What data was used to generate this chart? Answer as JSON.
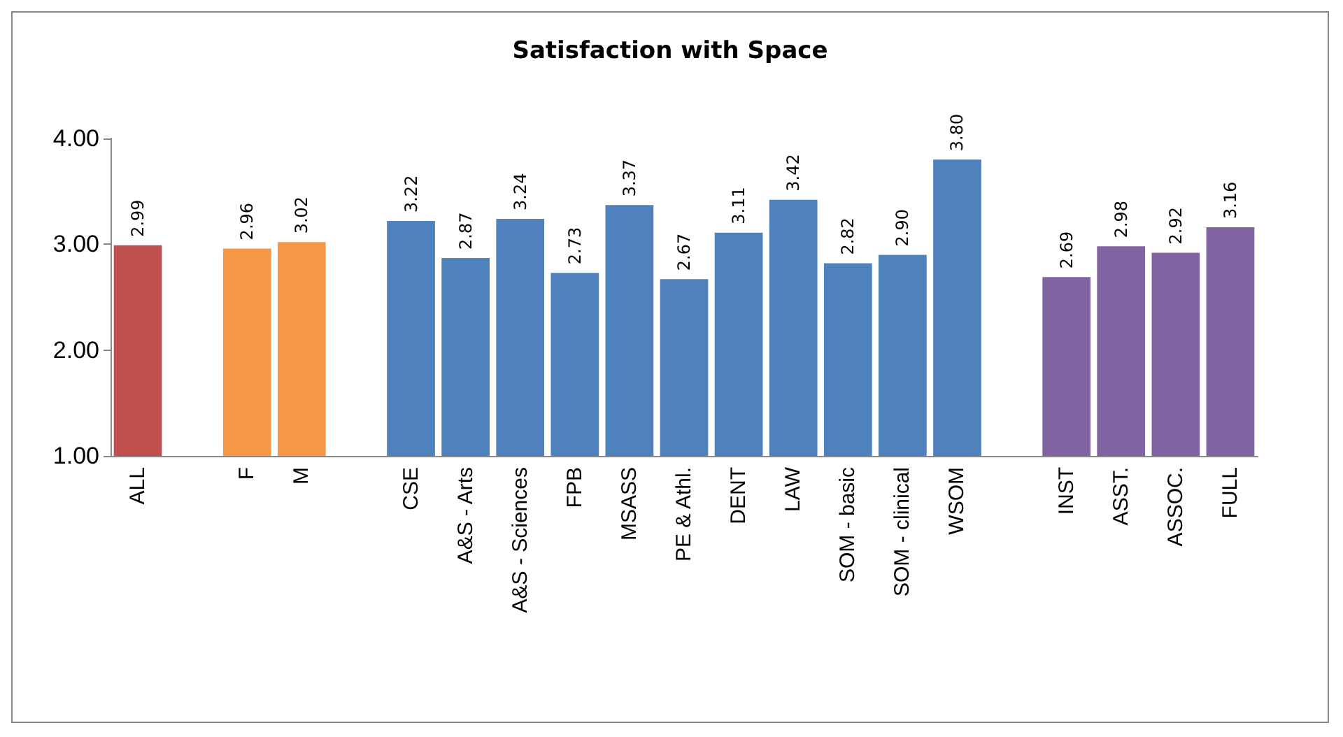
{
  "chart_data": {
    "type": "bar",
    "title": "Satisfaction with Space",
    "categories": [
      "ALL",
      null,
      "F",
      "M",
      null,
      "CSE",
      "A&S - Arts",
      "A&S - Sciences",
      "FPB",
      "MSASS",
      "PE & Athl.",
      "DENT",
      "LAW",
      "SOM - basic",
      "SOM - clinical",
      "WSOM",
      null,
      "INST",
      "ASST.",
      "ASSOC.",
      "FULL"
    ],
    "values": [
      2.99,
      null,
      2.96,
      3.02,
      null,
      3.22,
      2.87,
      3.24,
      2.73,
      3.37,
      2.67,
      3.11,
      3.42,
      2.82,
      2.9,
      3.8,
      null,
      2.69,
      2.98,
      2.92,
      3.16
    ],
    "value_labels": [
      "2.99",
      null,
      "2.96",
      "3.02",
      null,
      "3.22",
      "2.87",
      "3.24",
      "2.73",
      "3.37",
      "2.67",
      "3.11",
      "3.42",
      "2.82",
      "2.90",
      "3.80",
      null,
      "2.69",
      "2.98",
      "2.92",
      "3.16"
    ],
    "colors": [
      "#c0504d",
      "#c0504d",
      "#f79646",
      "#f79646",
      "#4f81bd",
      "#4f81bd",
      "#4f81bd",
      "#4f81bd",
      "#4f81bd",
      "#4f81bd",
      "#4f81bd",
      "#4f81bd",
      "#4f81bd",
      "#4f81bd",
      "#4f81bd",
      "#4f81bd",
      "#8064a2",
      "#8064a2",
      "#8064a2",
      "#8064a2",
      "#8064a2"
    ],
    "ylim": [
      1,
      4
    ],
    "yticks": [
      {
        "value": 1,
        "label": "1.00"
      },
      {
        "value": 2,
        "label": "2.00"
      },
      {
        "value": 3,
        "label": "3.00"
      },
      {
        "value": 4,
        "label": "4.00"
      }
    ],
    "grid": false
  }
}
